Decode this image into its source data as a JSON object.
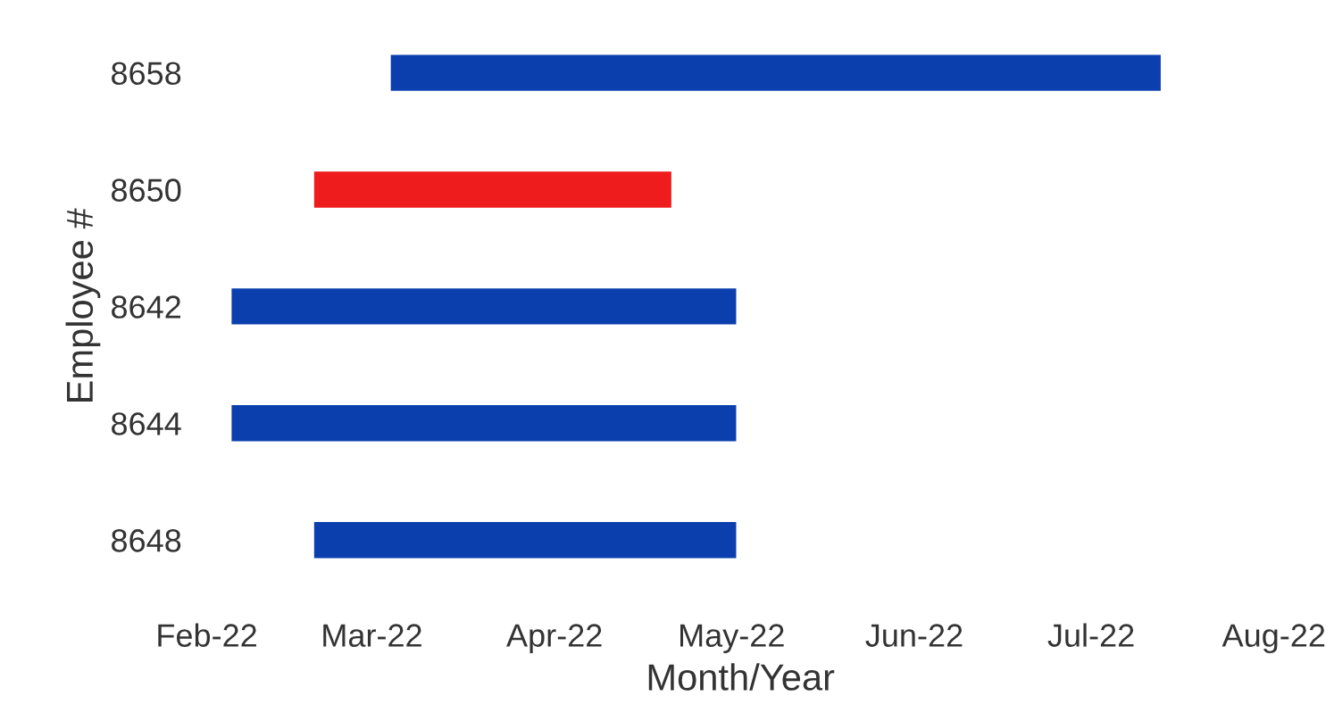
{
  "chart_data": {
    "type": "bar",
    "orientation": "horizontal",
    "xlabel": "Month/Year",
    "ylabel": "Employee #",
    "categories": [
      "8658",
      "8650",
      "8642",
      "8644",
      "8648"
    ],
    "base": [
      19055,
      19042,
      19028,
      19028,
      19042
    ],
    "values": [
      131,
      61,
      86,
      86,
      72
    ],
    "colors": [
      "#0b3fae",
      "#ee1c1c",
      "#0b3fae",
      "#0b3fae",
      "#0b3fae"
    ],
    "xlim": [
      "2022-02-01",
      "2022-08-01"
    ],
    "xticks": [
      {
        "value": "2022-02-01",
        "label": "Feb-22"
      },
      {
        "value": "2022-03-01",
        "label": "Mar-22"
      },
      {
        "value": "2022-04-01",
        "label": "Apr-22"
      },
      {
        "value": "2022-05-01",
        "label": "May-22"
      },
      {
        "value": "2022-06-01",
        "label": "Jun-22"
      },
      {
        "value": "2022-07-01",
        "label": "Jul-22"
      },
      {
        "value": "2022-08-01",
        "label": "Aug-22"
      }
    ],
    "grid": false,
    "legend": false
  }
}
